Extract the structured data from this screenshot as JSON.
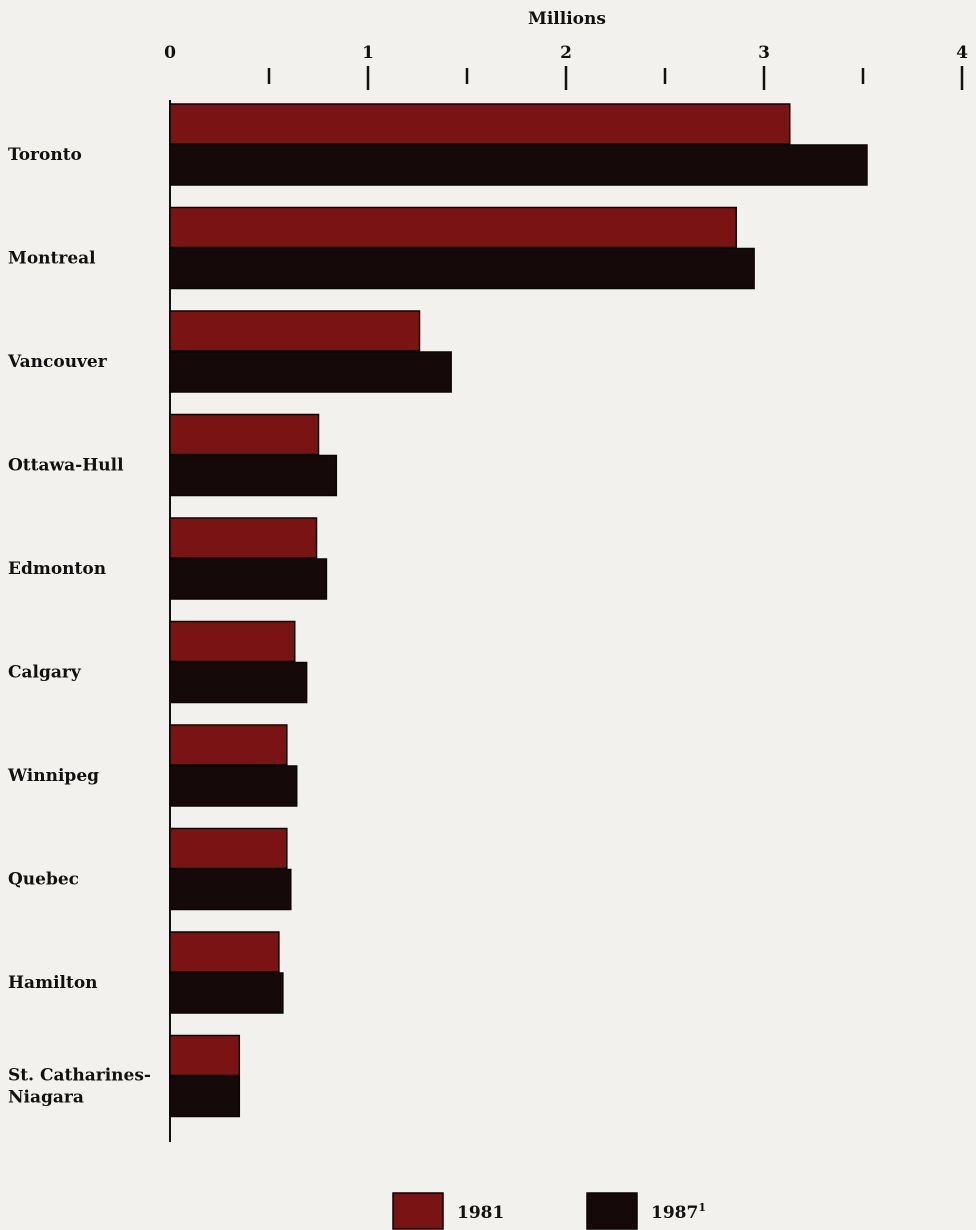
{
  "chart_data": {
    "type": "bar",
    "orientation": "horizontal",
    "xlabel": "Millions",
    "xlim": [
      0,
      4
    ],
    "major_ticks": [
      "0",
      "1",
      "2",
      "3",
      "4"
    ],
    "minor_ticks": [
      0.5,
      1.5,
      2.5,
      3.5
    ],
    "categories": [
      [
        "Toronto"
      ],
      [
        "Montreal"
      ],
      [
        "Vancouver"
      ],
      [
        "Ottawa-Hull"
      ],
      [
        "Edmonton"
      ],
      [
        "Calgary"
      ],
      [
        "Winnipeg"
      ],
      [
        "Quebec"
      ],
      [
        "Hamilton"
      ],
      [
        "St. Catharines-",
        "Niagara"
      ]
    ],
    "series": [
      {
        "name": "1981",
        "color": "#7a1414",
        "values": [
          3.13,
          2.86,
          1.26,
          0.75,
          0.74,
          0.63,
          0.59,
          0.59,
          0.55,
          0.35
        ]
      },
      {
        "name": "1987",
        "name_superscript": "1",
        "color": "#150909",
        "values": [
          3.52,
          2.95,
          1.42,
          0.84,
          0.79,
          0.69,
          0.64,
          0.61,
          0.57,
          0.35
        ]
      }
    ],
    "legend_position": "bottom"
  }
}
